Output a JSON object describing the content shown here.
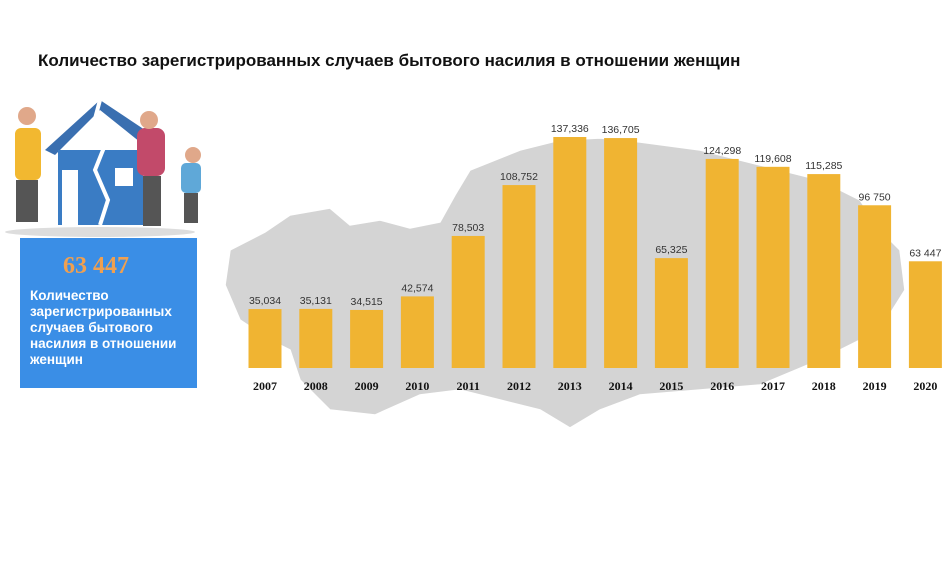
{
  "chart_data": {
    "type": "bar",
    "title": "Количество зарегистрированных случаев бытового насилия в отношении женщин",
    "categories": [
      "2007",
      "2008",
      "2009",
      "2010",
      "2011",
      "2012",
      "2013",
      "2014",
      "2015",
      "2016",
      "2017",
      "2018",
      "2019",
      "2020"
    ],
    "values": [
      35034,
      35131,
      34515,
      42574,
      78503,
      108752,
      137336,
      136705,
      65325,
      124298,
      119608,
      115285,
      96750,
      63447
    ],
    "value_labels": [
      "35,034",
      "35,131",
      "34,515",
      "42,574",
      "78,503",
      "108,752",
      "137,336",
      "136,705",
      "65,325",
      "124,298",
      "119,608",
      "115,285",
      "96 750",
      "63 447"
    ],
    "color": "#f0b432"
  },
  "panel": {
    "number": "63 447",
    "text": "Количество зарегистрированных случаев бытового насилия в отношении женщин"
  }
}
